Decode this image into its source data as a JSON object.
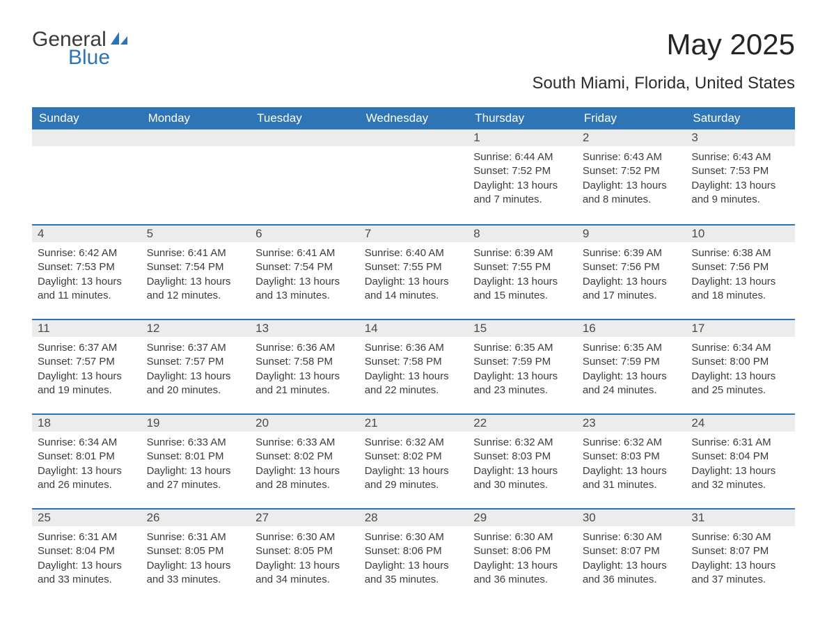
{
  "logo": {
    "word1": "General",
    "word2": "Blue",
    "color_general": "#3a3a3a",
    "color_blue": "#2f74b5",
    "sail_color": "#2f74b5"
  },
  "title": "May 2025",
  "subtitle": "South Miami, Florida, United States",
  "colors": {
    "header_bg": "#2f74b5",
    "header_fg": "#ffffff",
    "daynum_bg": "#ececec",
    "daynum_border": "#2f74b5",
    "body_text": "#3c3c3c",
    "page_bg": "#ffffff"
  },
  "typography": {
    "title_fontsize": 42,
    "subtitle_fontsize": 24,
    "dayheader_fontsize": 17,
    "body_fontsize": 15
  },
  "days_of_week": [
    "Sunday",
    "Monday",
    "Tuesday",
    "Wednesday",
    "Thursday",
    "Friday",
    "Saturday"
  ],
  "weeks": [
    [
      null,
      null,
      null,
      null,
      {
        "n": "1",
        "sunrise": "6:44 AM",
        "sunset": "7:52 PM",
        "daylight": "13 hours and 7 minutes."
      },
      {
        "n": "2",
        "sunrise": "6:43 AM",
        "sunset": "7:52 PM",
        "daylight": "13 hours and 8 minutes."
      },
      {
        "n": "3",
        "sunrise": "6:43 AM",
        "sunset": "7:53 PM",
        "daylight": "13 hours and 9 minutes."
      }
    ],
    [
      {
        "n": "4",
        "sunrise": "6:42 AM",
        "sunset": "7:53 PM",
        "daylight": "13 hours and 11 minutes."
      },
      {
        "n": "5",
        "sunrise": "6:41 AM",
        "sunset": "7:54 PM",
        "daylight": "13 hours and 12 minutes."
      },
      {
        "n": "6",
        "sunrise": "6:41 AM",
        "sunset": "7:54 PM",
        "daylight": "13 hours and 13 minutes."
      },
      {
        "n": "7",
        "sunrise": "6:40 AM",
        "sunset": "7:55 PM",
        "daylight": "13 hours and 14 minutes."
      },
      {
        "n": "8",
        "sunrise": "6:39 AM",
        "sunset": "7:55 PM",
        "daylight": "13 hours and 15 minutes."
      },
      {
        "n": "9",
        "sunrise": "6:39 AM",
        "sunset": "7:56 PM",
        "daylight": "13 hours and 17 minutes."
      },
      {
        "n": "10",
        "sunrise": "6:38 AM",
        "sunset": "7:56 PM",
        "daylight": "13 hours and 18 minutes."
      }
    ],
    [
      {
        "n": "11",
        "sunrise": "6:37 AM",
        "sunset": "7:57 PM",
        "daylight": "13 hours and 19 minutes."
      },
      {
        "n": "12",
        "sunrise": "6:37 AM",
        "sunset": "7:57 PM",
        "daylight": "13 hours and 20 minutes."
      },
      {
        "n": "13",
        "sunrise": "6:36 AM",
        "sunset": "7:58 PM",
        "daylight": "13 hours and 21 minutes."
      },
      {
        "n": "14",
        "sunrise": "6:36 AM",
        "sunset": "7:58 PM",
        "daylight": "13 hours and 22 minutes."
      },
      {
        "n": "15",
        "sunrise": "6:35 AM",
        "sunset": "7:59 PM",
        "daylight": "13 hours and 23 minutes."
      },
      {
        "n": "16",
        "sunrise": "6:35 AM",
        "sunset": "7:59 PM",
        "daylight": "13 hours and 24 minutes."
      },
      {
        "n": "17",
        "sunrise": "6:34 AM",
        "sunset": "8:00 PM",
        "daylight": "13 hours and 25 minutes."
      }
    ],
    [
      {
        "n": "18",
        "sunrise": "6:34 AM",
        "sunset": "8:01 PM",
        "daylight": "13 hours and 26 minutes."
      },
      {
        "n": "19",
        "sunrise": "6:33 AM",
        "sunset": "8:01 PM",
        "daylight": "13 hours and 27 minutes."
      },
      {
        "n": "20",
        "sunrise": "6:33 AM",
        "sunset": "8:02 PM",
        "daylight": "13 hours and 28 minutes."
      },
      {
        "n": "21",
        "sunrise": "6:32 AM",
        "sunset": "8:02 PM",
        "daylight": "13 hours and 29 minutes."
      },
      {
        "n": "22",
        "sunrise": "6:32 AM",
        "sunset": "8:03 PM",
        "daylight": "13 hours and 30 minutes."
      },
      {
        "n": "23",
        "sunrise": "6:32 AM",
        "sunset": "8:03 PM",
        "daylight": "13 hours and 31 minutes."
      },
      {
        "n": "24",
        "sunrise": "6:31 AM",
        "sunset": "8:04 PM",
        "daylight": "13 hours and 32 minutes."
      }
    ],
    [
      {
        "n": "25",
        "sunrise": "6:31 AM",
        "sunset": "8:04 PM",
        "daylight": "13 hours and 33 minutes."
      },
      {
        "n": "26",
        "sunrise": "6:31 AM",
        "sunset": "8:05 PM",
        "daylight": "13 hours and 33 minutes."
      },
      {
        "n": "27",
        "sunrise": "6:30 AM",
        "sunset": "8:05 PM",
        "daylight": "13 hours and 34 minutes."
      },
      {
        "n": "28",
        "sunrise": "6:30 AM",
        "sunset": "8:06 PM",
        "daylight": "13 hours and 35 minutes."
      },
      {
        "n": "29",
        "sunrise": "6:30 AM",
        "sunset": "8:06 PM",
        "daylight": "13 hours and 36 minutes."
      },
      {
        "n": "30",
        "sunrise": "6:30 AM",
        "sunset": "8:07 PM",
        "daylight": "13 hours and 36 minutes."
      },
      {
        "n": "31",
        "sunrise": "6:30 AM",
        "sunset": "8:07 PM",
        "daylight": "13 hours and 37 minutes."
      }
    ]
  ],
  "labels": {
    "sunrise": "Sunrise:",
    "sunset": "Sunset:",
    "daylight": "Daylight:"
  }
}
